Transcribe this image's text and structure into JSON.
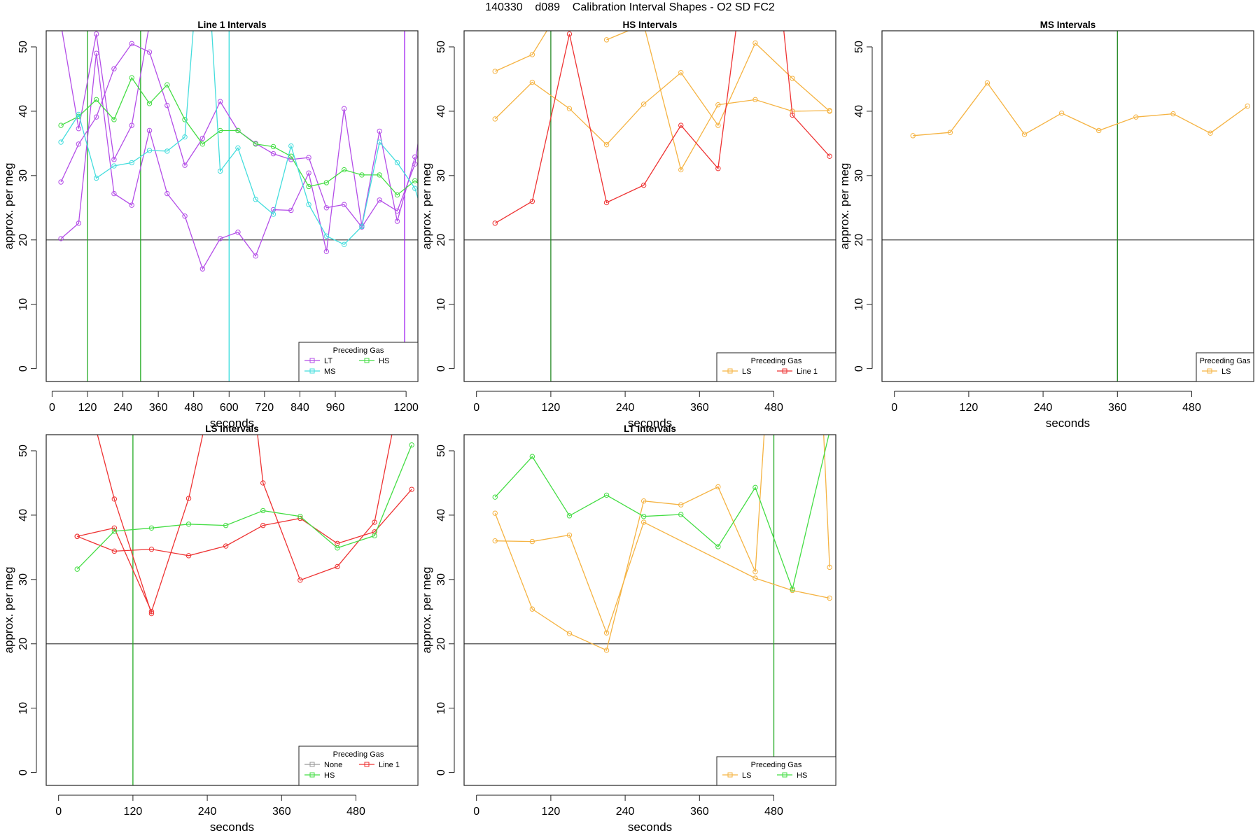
{
  "figure_title": "140330    d089    Calibration Interval Shapes - O2 SD FC2",
  "chart_data": [
    {
      "type": "line",
      "title": "Line 1 Intervals",
      "xlabel": "seconds",
      "ylabel": "approx. per meg",
      "xlim": [
        -20,
        1240
      ],
      "ylim": [
        -2,
        52.5
      ],
      "xticks": [
        0,
        120,
        240,
        360,
        480,
        600,
        720,
        840,
        960,
        1200
      ],
      "yticks": [
        0,
        10,
        20,
        30,
        40,
        50
      ],
      "hline": 20,
      "vlines": [
        {
          "x": 120,
          "color": "#22aa22"
        },
        {
          "x": 300,
          "color": "#22aa22"
        },
        {
          "x": 600,
          "color": "#33dddd"
        },
        {
          "x": 1195,
          "color": "#a020f0"
        }
      ],
      "legend": {
        "title": "Preceding Gas",
        "position": "bottom-right",
        "columns": 2
      },
      "series": [
        {
          "name": "LT",
          "color": "#b44ee8",
          "points": [
            [
              30,
              20.2
            ],
            [
              90,
              22.6
            ],
            [
              150,
              49.0
            ],
            [
              210,
              27.2
            ],
            [
              270,
              25.4
            ],
            [
              330,
              37.0
            ],
            [
              390,
              27.2
            ],
            [
              450,
              23.7
            ],
            [
              510,
              15.5
            ],
            [
              570,
              20.2
            ],
            [
              630,
              21.2
            ],
            [
              690,
              17.5
            ],
            [
              750,
              24.7
            ],
            [
              810,
              24.6
            ],
            [
              870,
              30.4
            ],
            [
              930,
              18.2
            ],
            [
              990,
              40.4
            ],
            [
              1050,
              22.2
            ],
            [
              1110,
              36.9
            ],
            [
              1170,
              22.9
            ],
            [
              1230,
              32.9
            ]
          ]
        },
        {
          "name": "LT",
          "color": "#b44ee8",
          "points": [
            [
              30,
              29.0
            ],
            [
              90,
              34.9
            ],
            [
              150,
              39.1
            ],
            [
              210,
              46.6
            ],
            [
              270,
              50.5
            ],
            [
              330,
              49.2
            ],
            [
              390,
              40.9
            ],
            [
              450,
              31.6
            ],
            [
              510,
              35.8
            ],
            [
              570,
              41.5
            ],
            [
              630,
              37.0
            ],
            [
              690,
              35.0
            ],
            [
              750,
              33.4
            ],
            [
              810,
              32.5
            ],
            [
              870,
              32.8
            ],
            [
              930,
              25.0
            ],
            [
              990,
              25.5
            ],
            [
              1050,
              22.0
            ],
            [
              1110,
              26.2
            ],
            [
              1170,
              24.5
            ],
            [
              1230,
              31.8
            ],
            [
              1250,
              38.0
            ]
          ]
        },
        {
          "name": "LT",
          "color": "#b44ee8",
          "points": [
            [
              30,
              53.5
            ],
            [
              90,
              37.3
            ],
            [
              150,
              52.0
            ],
            [
              210,
              32.5
            ],
            [
              270,
              37.8
            ],
            [
              330,
              53.5
            ]
          ]
        },
        {
          "name": "HS",
          "color": "#44dd44",
          "points": [
            [
              30,
              37.8
            ],
            [
              90,
              39.2
            ],
            [
              150,
              41.8
            ],
            [
              210,
              38.7
            ],
            [
              270,
              45.2
            ],
            [
              330,
              41.2
            ],
            [
              390,
              44.1
            ],
            [
              450,
              38.7
            ],
            [
              510,
              34.9
            ],
            [
              570,
              37.0
            ],
            [
              630,
              37.0
            ],
            [
              690,
              34.9
            ],
            [
              750,
              34.5
            ],
            [
              810,
              33.0
            ],
            [
              870,
              28.3
            ],
            [
              930,
              28.9
            ],
            [
              990,
              30.9
            ],
            [
              1050,
              30.1
            ],
            [
              1110,
              30.1
            ],
            [
              1170,
              27.0
            ],
            [
              1230,
              29.2
            ],
            [
              1250,
              28.5
            ]
          ]
        },
        {
          "name": "MS",
          "color": "#44dddd",
          "points": [
            [
              30,
              35.2
            ],
            [
              90,
              39.5
            ],
            [
              150,
              29.6
            ],
            [
              210,
              31.5
            ],
            [
              270,
              32.0
            ],
            [
              330,
              33.9
            ],
            [
              390,
              33.8
            ],
            [
              450,
              36.0
            ],
            [
              480,
              53.5
            ]
          ]
        },
        {
          "name": "MS",
          "color": "#44dddd",
          "points": [
            [
              540,
              53.5
            ],
            [
              570,
              30.7
            ],
            [
              630,
              34.3
            ],
            [
              690,
              26.3
            ],
            [
              750,
              24.0
            ],
            [
              810,
              34.6
            ],
            [
              870,
              25.5
            ],
            [
              930,
              20.6
            ],
            [
              990,
              19.3
            ],
            [
              1050,
              22.1
            ],
            [
              1110,
              35.2
            ],
            [
              1170,
              32.0
            ],
            [
              1230,
              28.0
            ],
            [
              1250,
              25.0
            ]
          ]
        }
      ]
    },
    {
      "type": "line",
      "title": "HS Intervals",
      "xlabel": "seconds",
      "ylabel": "approx. per meg",
      "xlim": [
        -20,
        580
      ],
      "ylim": [
        -2,
        52.5
      ],
      "xticks": [
        0,
        120,
        240,
        360,
        480
      ],
      "yticks": [
        0,
        10,
        20,
        30,
        40,
        50
      ],
      "hline": 20,
      "vlines": [
        {
          "x": 120,
          "color": "#228822"
        }
      ],
      "legend": {
        "title": "Preceding Gas",
        "position": "bottom-right",
        "columns": 2
      },
      "series": [
        {
          "name": "LS",
          "color": "#f5b342",
          "points": [
            [
              30,
              46.2
            ],
            [
              90,
              48.8
            ],
            [
              120,
              53.5
            ]
          ]
        },
        {
          "name": "LS",
          "color": "#f5b342",
          "points": [
            [
              210,
              51.1
            ],
            [
              270,
              53.5
            ],
            [
              330,
              30.9
            ],
            [
              390,
              41.0
            ],
            [
              450,
              41.8
            ],
            [
              510,
              40.0
            ],
            [
              570,
              40.1
            ]
          ]
        },
        {
          "name": "LS",
          "color": "#f5b342",
          "points": [
            [
              30,
              38.8
            ],
            [
              90,
              44.5
            ],
            [
              150,
              40.4
            ],
            [
              210,
              34.8
            ],
            [
              270,
              41.1
            ],
            [
              330,
              46.0
            ],
            [
              390,
              37.8
            ],
            [
              450,
              50.6
            ],
            [
              510,
              45.1
            ],
            [
              570,
              40.0
            ]
          ]
        },
        {
          "name": "Line 1",
          "color": "#ee3333",
          "points": [
            [
              30,
              22.6
            ],
            [
              90,
              26.0
            ],
            [
              150,
              52.0
            ],
            [
              210,
              25.8
            ],
            [
              270,
              28.5
            ],
            [
              330,
              37.8
            ],
            [
              390,
              31.1
            ],
            [
              420,
              53.5
            ]
          ]
        },
        {
          "name": "Line 1",
          "color": "#ee3333",
          "points": [
            [
              495,
              53.5
            ],
            [
              510,
              39.4
            ],
            [
              570,
              33.0
            ]
          ]
        }
      ]
    },
    {
      "type": "line",
      "title": "MS Intervals",
      "xlabel": "seconds",
      "ylabel": "approx. per meg",
      "xlim": [
        -20,
        580
      ],
      "ylim": [
        -2,
        52.5
      ],
      "xticks": [
        0,
        120,
        240,
        360,
        480
      ],
      "yticks": [
        0,
        10,
        20,
        30,
        40,
        50
      ],
      "hline": 20,
      "vlines": [
        {
          "x": 360,
          "color": "#228822"
        }
      ],
      "legend": {
        "title": "Preceding Gas",
        "position": "bottom-right",
        "columns": 1
      },
      "series": [
        {
          "name": "LS",
          "color": "#f5b342",
          "points": [
            [
              30,
              36.2
            ],
            [
              90,
              36.7
            ],
            [
              150,
              44.4
            ],
            [
              210,
              36.4
            ],
            [
              270,
              39.7
            ],
            [
              330,
              37.0
            ],
            [
              390,
              39.1
            ],
            [
              450,
              39.6
            ],
            [
              510,
              36.6
            ],
            [
              570,
              40.8
            ]
          ]
        }
      ]
    },
    {
      "type": "line",
      "title": "LS Intervals",
      "xlabel": "seconds",
      "ylabel": "approx. per meg",
      "xlim": [
        -20,
        580
      ],
      "ylim": [
        -2,
        52.5
      ],
      "xticks": [
        0,
        120,
        240,
        360,
        480
      ],
      "yticks": [
        0,
        10,
        20,
        30,
        40,
        50
      ],
      "hline": 20,
      "vlines": [
        {
          "x": 120,
          "color": "#22aa22"
        }
      ],
      "legend": {
        "title": "Preceding Gas",
        "position": "bottom-right",
        "columns": 2
      },
      "series": [
        {
          "name": "None",
          "color": "#999999",
          "points": []
        },
        {
          "name": "Line 1",
          "color": "#ee3333",
          "points": [
            [
              30,
              36.7
            ],
            [
              90,
              38.0
            ],
            [
              150,
              25.0
            ],
            [
              210,
              42.6
            ],
            [
              235,
              53.5
            ]
          ]
        },
        {
          "name": "Line 1",
          "color": "#ee3333",
          "points": [
            [
              320,
              53.5
            ],
            [
              330,
              45.0
            ],
            [
              390,
              29.9
            ],
            [
              450,
              32.0
            ],
            [
              510,
              38.9
            ],
            [
              540,
              53.5
            ]
          ]
        },
        {
          "name": "Line 1",
          "color": "#ee3333",
          "points": [
            [
              60,
              53.5
            ],
            [
              90,
              42.5
            ],
            [
              150,
              24.7
            ]
          ]
        },
        {
          "name": "Line 1",
          "color": "#ee3333",
          "points": [
            [
              30,
              36.7
            ],
            [
              90,
              34.4
            ],
            [
              150,
              34.7
            ],
            [
              210,
              33.7
            ],
            [
              270,
              35.2
            ],
            [
              330,
              38.4
            ],
            [
              390,
              39.5
            ],
            [
              450,
              35.6
            ],
            [
              510,
              37.4
            ],
            [
              570,
              44.0
            ]
          ]
        },
        {
          "name": "HS",
          "color": "#44dd44",
          "points": [
            [
              30,
              31.6
            ],
            [
              90,
              37.5
            ],
            [
              150,
              38.0
            ],
            [
              210,
              38.6
            ],
            [
              270,
              38.4
            ],
            [
              330,
              40.7
            ],
            [
              390,
              39.8
            ],
            [
              450,
              34.9
            ],
            [
              510,
              36.8
            ],
            [
              570,
              50.9
            ]
          ]
        }
      ]
    },
    {
      "type": "line",
      "title": "LT Intervals",
      "xlabel": "seconds",
      "ylabel": "approx. per meg",
      "xlim": [
        -20,
        580
      ],
      "ylim": [
        -2,
        52.5
      ],
      "xticks": [
        0,
        120,
        240,
        360,
        480
      ],
      "yticks": [
        0,
        10,
        20,
        30,
        40,
        50
      ],
      "hline": 20,
      "vlines": [
        {
          "x": 480,
          "color": "#22aa22"
        }
      ],
      "legend": {
        "title": "Preceding Gas",
        "position": "bottom-right",
        "columns": 2
      },
      "series": [
        {
          "name": "LS",
          "color": "#f5b342",
          "points": [
            [
              30,
              40.3
            ],
            [
              90,
              25.4
            ],
            [
              150,
              21.6
            ],
            [
              210,
              19.0
            ],
            [
              270,
              42.2
            ],
            [
              330,
              41.6
            ],
            [
              390,
              44.4
            ],
            [
              450,
              31.2
            ],
            [
              465,
              53.5
            ]
          ]
        },
        {
          "name": "LS",
          "color": "#f5b342",
          "points": [
            [
              30,
              36.0
            ],
            [
              90,
              35.9
            ],
            [
              150,
              36.9
            ],
            [
              210,
              21.7
            ],
            [
              270,
              38.9
            ],
            [
              450,
              30.2
            ],
            [
              510,
              28.3
            ],
            [
              570,
              27.1
            ]
          ]
        },
        {
          "name": "LS",
          "color": "#f5b342",
          "points": [
            [
              560,
              53.5
            ],
            [
              570,
              31.9
            ]
          ]
        },
        {
          "name": "HS",
          "color": "#44dd44",
          "points": [
            [
              30,
              42.8
            ],
            [
              90,
              49.1
            ],
            [
              150,
              39.9
            ],
            [
              210,
              43.1
            ],
            [
              270,
              39.8
            ],
            [
              330,
              40.1
            ],
            [
              390,
              35.1
            ],
            [
              450,
              44.3
            ],
            [
              510,
              28.5
            ],
            [
              570,
              53.0
            ]
          ]
        }
      ]
    }
  ]
}
